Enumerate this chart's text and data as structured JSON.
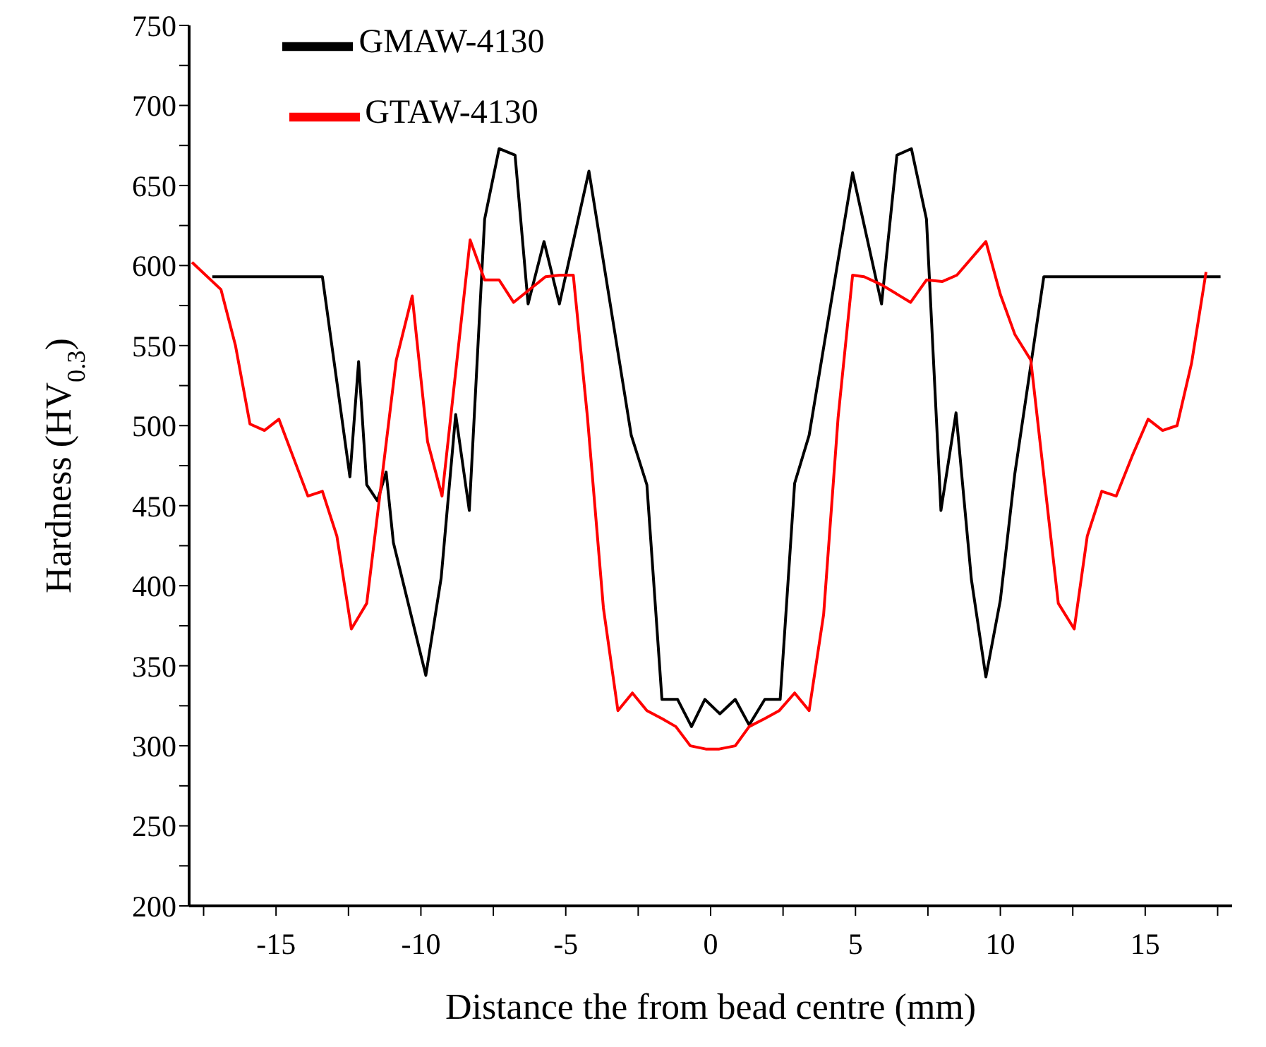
{
  "chart_data": {
    "type": "line",
    "xlabel": "Distance the from bead centre (mm)",
    "ylabel": "Hardness (HV$_{0.3}$)",
    "xlim": [
      -18,
      18
    ],
    "xticks": [
      {
        "value": -17.5,
        "label": null
      },
      -15,
      {
        "value": -12.5,
        "label": null
      },
      -10,
      {
        "value": -7.5,
        "label": null
      },
      -5,
      {
        "value": -2.5,
        "label": null
      },
      0,
      {
        "value": 2.5,
        "label": null
      },
      5,
      {
        "value": 7.5,
        "label": null
      },
      10,
      {
        "value": 12.5,
        "label": null
      },
      15,
      {
        "value": 17.5,
        "label": null
      }
    ],
    "ylim": [
      200,
      750
    ],
    "yticks": [
      200,
      {
        "value": 225,
        "label": null
      },
      250,
      {
        "value": 275,
        "label": null
      },
      300,
      {
        "value": 325,
        "label": null
      },
      350,
      {
        "value": 375,
        "label": null
      },
      400,
      {
        "value": 425,
        "label": null
      },
      450,
      {
        "value": 475,
        "label": null
      },
      500,
      {
        "value": 525,
        "label": null
      },
      550,
      {
        "value": 575,
        "label": null
      },
      600,
      {
        "value": 625,
        "label": null
      },
      650,
      {
        "value": 675,
        "label": null
      },
      700,
      {
        "value": 725,
        "label": null
      },
      750
    ],
    "grid": false,
    "legend": "top left",
    "marker": "none",
    "line_style": "solid",
    "series": [
      {
        "name": "GMAW-4130",
        "color": "#000000",
        "x": [
          -17.2,
          -13.4,
          -12.45,
          -12.15,
          -11.87,
          -11.5,
          -11.2,
          -10.95,
          -9.83,
          -9.3,
          -8.8,
          -8.33,
          -7.8,
          -7.3,
          -6.75,
          -6.3,
          -5.75,
          -5.22,
          -4.2,
          -2.74,
          -2.2,
          -1.68,
          -1.14,
          -0.66,
          -0.2,
          0.32,
          0.85,
          1.33,
          1.87,
          2.4,
          2.9,
          3.4,
          4.9,
          5.9,
          6.43,
          6.93,
          7.45,
          7.95,
          8.47,
          9.0,
          9.5,
          10.0,
          10.5,
          11.5,
          17.6
        ],
        "values": [
          593,
          593,
          468,
          540,
          463,
          453,
          471,
          427,
          344,
          405,
          507,
          447,
          629,
          673,
          669,
          576,
          615,
          576,
          659,
          494,
          463,
          329,
          329,
          312,
          329,
          320,
          329,
          313,
          329,
          329,
          464,
          494,
          658,
          576,
          669,
          673,
          629,
          447,
          508,
          404,
          343,
          391,
          470,
          593,
          593
        ]
      },
      {
        "name": "GTAW-4130",
        "color": "#ff0000",
        "x": [
          -17.9,
          -16.9,
          -16.4,
          -15.9,
          -15.4,
          -14.9,
          -14.4,
          -13.9,
          -13.4,
          -12.9,
          -12.4,
          -11.87,
          -10.85,
          -10.3,
          -9.77,
          -9.27,
          -8.3,
          -7.8,
          -7.3,
          -6.8,
          -5.7,
          -5.2,
          -4.74,
          -4.25,
          -3.7,
          -3.2,
          -2.7,
          -2.2,
          -1.68,
          -1.2,
          -0.7,
          -0.17,
          0.3,
          0.85,
          1.33,
          1.87,
          2.37,
          2.9,
          3.4,
          3.9,
          4.4,
          4.9,
          5.3,
          5.9,
          6.9,
          7.45,
          7.99,
          8.5,
          9.5,
          10.0,
          10.5,
          11.05,
          12.0,
          12.55,
          13.0,
          13.5,
          14.0,
          14.55,
          15.1,
          15.6,
          16.1,
          16.6,
          17.1
        ],
        "values": [
          602,
          585,
          550,
          501,
          497,
          504,
          480,
          456,
          459,
          431,
          373,
          389,
          541,
          581,
          490,
          456,
          616,
          591,
          591,
          577,
          593,
          594,
          594,
          505,
          386,
          322,
          333,
          322,
          317,
          312,
          300,
          298,
          298,
          300,
          312,
          317,
          322,
          333,
          322,
          382,
          505,
          594,
          593,
          588,
          577,
          591,
          590,
          594,
          615,
          582,
          557,
          541,
          389,
          373,
          431,
          459,
          456,
          481,
          504,
          497,
          500,
          539,
          596
        ]
      }
    ]
  }
}
